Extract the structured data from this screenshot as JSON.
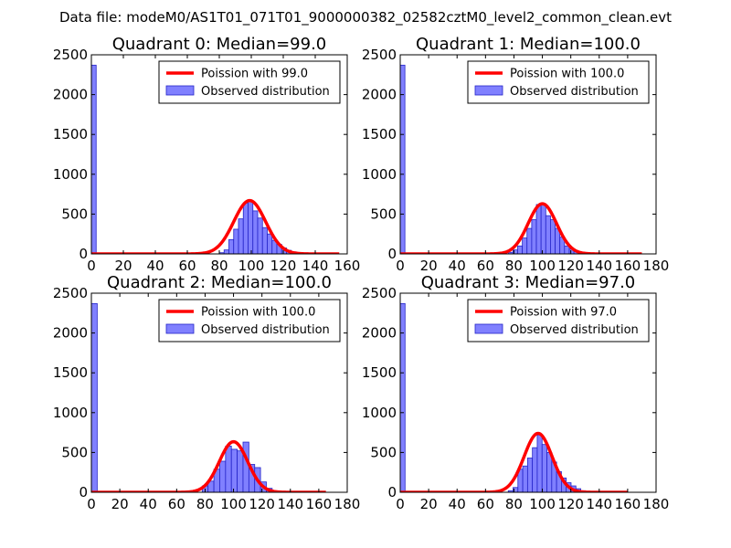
{
  "figure": {
    "suptitle": "Data file: modeM0/AS1T01_071T01_9000000382_02582cztM0_level2_common_clean.evt"
  },
  "colors": {
    "hist_fill": "#8080ff",
    "hist_edge": "#2424c8",
    "curve": "#ff0000",
    "legend_edge": "#000000"
  },
  "chart_data": [
    {
      "type": "bar",
      "title": "Quadrant 0: Median=99.0",
      "xlim": [
        0,
        160
      ],
      "ylim": [
        0,
        2500
      ],
      "xticks": [
        "0",
        "20",
        "40",
        "60",
        "80",
        "100",
        "120",
        "140",
        "160"
      ],
      "yticks": [
        "0",
        "500",
        "1000",
        "1500",
        "2000",
        "2500"
      ],
      "grid": false,
      "legend_position": "top-right",
      "bin_width": 3,
      "hist_x": [
        0,
        80,
        83,
        86,
        89,
        92,
        95,
        98,
        101,
        104,
        107,
        110,
        113,
        116,
        119,
        122,
        125,
        128,
        131
      ],
      "hist_y": [
        2370,
        15,
        50,
        180,
        310,
        440,
        640,
        660,
        540,
        450,
        330,
        250,
        170,
        120,
        75,
        45,
        25,
        10,
        5
      ],
      "curve": {
        "lambda": 99.0,
        "peak": 670,
        "x_start": 0,
        "x_end": 155
      },
      "legend": [
        "Poission with 99.0",
        "Observed distribution"
      ]
    },
    {
      "type": "bar",
      "title": "Quadrant 1: Median=100.0",
      "xlim": [
        0,
        180
      ],
      "ylim": [
        0,
        2500
      ],
      "xticks": [
        "0",
        "20",
        "40",
        "60",
        "80",
        "100",
        "120",
        "140",
        "160",
        "180"
      ],
      "yticks": [
        "0",
        "500",
        "1000",
        "1500",
        "2000",
        "2500"
      ],
      "grid": false,
      "legend_position": "top-right",
      "bin_width": 3.3,
      "hist_x": [
        0,
        76,
        79.3,
        82.6,
        85.9,
        89.2,
        92.5,
        95.8,
        99.1,
        102.4,
        105.7,
        109,
        112.3,
        115.6,
        118.9,
        122.2,
        125.5,
        128.8,
        132.1,
        135.4
      ],
      "hist_y": [
        2370,
        20,
        50,
        100,
        200,
        320,
        430,
        620,
        620,
        480,
        430,
        320,
        210,
        100,
        60,
        40,
        20,
        15,
        10,
        5
      ],
      "curve": {
        "lambda": 100.0,
        "peak": 630,
        "x_start": 0,
        "x_end": 170
      },
      "legend": [
        "Poission with 100.0",
        "Observed distribution"
      ]
    },
    {
      "type": "bar",
      "title": "Quadrant 2: Median=100.0",
      "xlim": [
        0,
        180
      ],
      "ylim": [
        0,
        2500
      ],
      "xticks": [
        "0",
        "20",
        "40",
        "60",
        "80",
        "100",
        "120",
        "140",
        "160",
        "180"
      ],
      "yticks": [
        "0",
        "500",
        "1000",
        "1500",
        "2000",
        "2500"
      ],
      "grid": false,
      "legend_position": "top-right",
      "bin_width": 4.1,
      "hist_x": [
        0,
        78,
        82.1,
        86.2,
        90.3,
        94.4,
        98.5,
        102.6,
        106.7,
        110.8,
        114.9,
        119,
        123.1,
        127.2
      ],
      "hist_y": [
        2370,
        80,
        140,
        290,
        390,
        580,
        540,
        520,
        630,
        350,
        310,
        130,
        50,
        10
      ],
      "curve": {
        "lambda": 100.0,
        "peak": 635,
        "x_start": 0,
        "x_end": 165
      },
      "legend": [
        "Poission with 100.0",
        "Observed distribution"
      ]
    },
    {
      "type": "bar",
      "title": "Quadrant 3: Median=97.0",
      "xlim": [
        0,
        180
      ],
      "ylim": [
        0,
        2500
      ],
      "xticks": [
        "0",
        "20",
        "40",
        "60",
        "80",
        "100",
        "120",
        "140",
        "160",
        "180"
      ],
      "yticks": [
        "0",
        "500",
        "1000",
        "1500",
        "2000",
        "2500"
      ],
      "grid": false,
      "legend_position": "top-right",
      "bin_width": 3.4,
      "hist_x": [
        0,
        76,
        79.4,
        82.8,
        86.2,
        89.6,
        93,
        96.4,
        99.8,
        103.2,
        106.6,
        110,
        113.4,
        116.8,
        120.2,
        123.6,
        127,
        130.4
      ],
      "hist_y": [
        2370,
        20,
        60,
        290,
        330,
        430,
        560,
        720,
        600,
        500,
        380,
        260,
        180,
        120,
        80,
        45,
        20,
        8
      ],
      "curve": {
        "lambda": 97.0,
        "peak": 740,
        "x_start": 0,
        "x_end": 160
      },
      "legend": [
        "Poission with 97.0",
        "Observed distribution"
      ]
    }
  ]
}
